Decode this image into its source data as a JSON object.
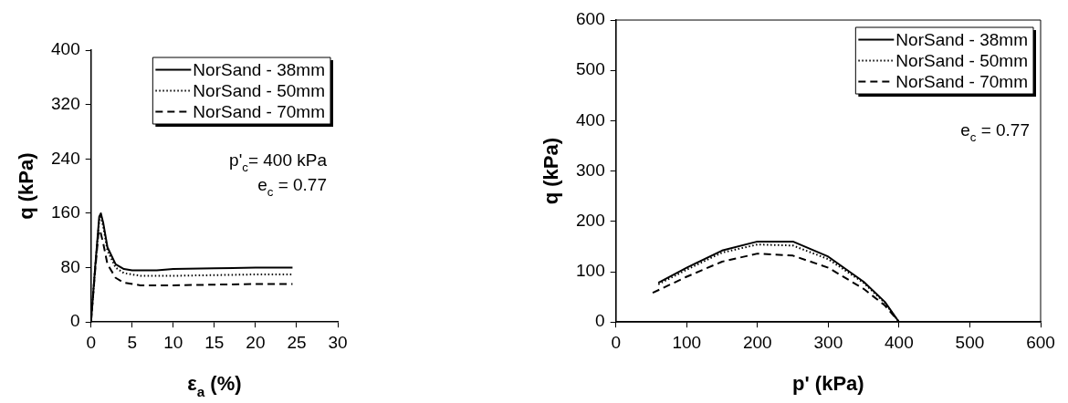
{
  "chart_data": [
    {
      "type": "line",
      "xlabel": "ε$_{a}$ (%)",
      "ylabel": "q (kPa)",
      "xlim": [
        0,
        30
      ],
      "xticks": [
        0,
        5,
        10,
        15,
        20,
        25,
        30
      ],
      "ylim": [
        0,
        400
      ],
      "yticks": [
        0,
        80,
        160,
        240,
        320,
        400
      ],
      "grid": false,
      "legend": "top right",
      "marker": "none",
      "annotations": [
        "p'$_{c}$= 400 kPa",
        "e$_{c}$ = 0.77"
      ],
      "series": [
        {
          "name": "NorSand - 38mm",
          "color": "#000000",
          "line_style": "solid",
          "x": [
            0,
            0.5,
            1,
            1.2,
            1.5,
            2,
            3,
            4,
            5,
            8,
            10,
            15,
            20,
            24.5
          ],
          "values": [
            0,
            80,
            155,
            160,
            145,
            110,
            85,
            78,
            76,
            76,
            78,
            79,
            80,
            80
          ]
        },
        {
          "name": "NorSand - 50mm",
          "color": "#000000",
          "line_style": "dotted",
          "x": [
            0,
            0.5,
            1,
            1.2,
            1.5,
            2,
            3,
            4,
            6,
            10,
            15,
            20,
            24.5
          ],
          "values": [
            0,
            80,
            150,
            155,
            140,
            105,
            80,
            72,
            68,
            68,
            69,
            70,
            70
          ]
        },
        {
          "name": "NorSand - 70mm",
          "color": "#000000",
          "line_style": "dashed",
          "x": [
            0,
            0.5,
            0.9,
            1.1,
            1.5,
            2,
            3,
            4,
            6,
            10,
            15,
            20,
            24.5
          ],
          "values": [
            0,
            75,
            130,
            135,
            115,
            85,
            65,
            58,
            54,
            54,
            55,
            56,
            56
          ]
        }
      ]
    },
    {
      "type": "line",
      "xlabel": "p' (kPa)",
      "ylabel": "q (kPa)",
      "xlim": [
        0,
        600
      ],
      "xticks": [
        0,
        100,
        200,
        300,
        400,
        500,
        600
      ],
      "ylim": [
        0,
        600
      ],
      "yticks": [
        0,
        100,
        200,
        300,
        400,
        500,
        600
      ],
      "grid": false,
      "legend": "top right",
      "marker": "none",
      "annotations": [
        "e$_{c}$ = 0.77"
      ],
      "series": [
        {
          "name": "NorSand - 38mm",
          "color": "#000000",
          "line_style": "solid",
          "x": [
            60,
            100,
            150,
            200,
            250,
            300,
            350,
            380,
            400
          ],
          "values": [
            78,
            108,
            142,
            160,
            160,
            130,
            80,
            40,
            0
          ]
        },
        {
          "name": "NorSand - 50mm",
          "color": "#000000",
          "line_style": "dotted",
          "x": [
            60,
            100,
            150,
            200,
            250,
            300,
            350,
            380,
            400
          ],
          "values": [
            75,
            104,
            138,
            154,
            152,
            125,
            78,
            38,
            0
          ]
        },
        {
          "name": "NorSand - 70mm",
          "color": "#000000",
          "line_style": "dashed",
          "x": [
            52,
            100,
            150,
            200,
            250,
            300,
            350,
            380,
            400
          ],
          "values": [
            58,
            90,
            120,
            136,
            132,
            108,
            66,
            33,
            0
          ]
        }
      ]
    }
  ]
}
